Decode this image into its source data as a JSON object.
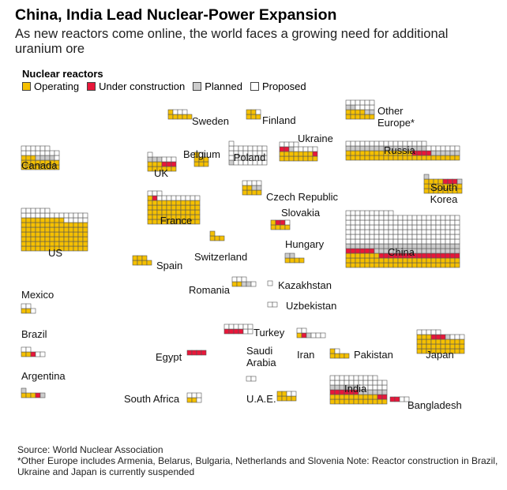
{
  "title": "China, India Lead Nuclear-Power Expansion",
  "subtitle": "As new reactors come online, the world faces a growing need for additional uranium ore",
  "legend": {
    "title": "Nuclear reactors",
    "items": [
      {
        "label": "Operating",
        "color": "#f5c000"
      },
      {
        "label": "Under construction",
        "color": "#e8173a"
      },
      {
        "label": "Planned",
        "color": "#cccccc"
      },
      {
        "label": "Proposed",
        "color": "#ffffff"
      }
    ]
  },
  "colors": {
    "operating": "#f5c000",
    "construction": "#e8173a",
    "planned": "#cccccc",
    "proposed": "#ffffff",
    "grid": "#555555"
  },
  "chart_data": {
    "type": "waffle",
    "unit": "reactors",
    "title": "China, India Lead Nuclear-Power Expansion",
    "series": [
      "Operating",
      "Under construction",
      "Planned",
      "Proposed"
    ],
    "countries": [
      {
        "name": "Sweden",
        "operating": 6,
        "construction": 0,
        "planned": 0,
        "proposed": 3
      },
      {
        "name": "Finland",
        "operating": 5,
        "construction": 0,
        "planned": 0,
        "proposed": 1
      },
      {
        "name": "Other Europe*",
        "operating": 10,
        "construction": 0,
        "planned": 4,
        "proposed": 10
      },
      {
        "name": "Canada",
        "operating": 19,
        "construction": 0,
        "planned": 4,
        "proposed": 15
      },
      {
        "name": "UK",
        "operating": 9,
        "construction": 3,
        "planned": 3,
        "proposed": 4
      },
      {
        "name": "Belgium",
        "operating": 7,
        "construction": 0,
        "planned": 0,
        "proposed": 1
      },
      {
        "name": "Poland",
        "operating": 0,
        "construction": 0,
        "planned": 1,
        "proposed": 32
      },
      {
        "name": "Ukraine",
        "operating": 15,
        "construction": 3,
        "planned": 1,
        "proposed": 9
      },
      {
        "name": "Russia",
        "operating": 38,
        "construction": 4,
        "planned": 23,
        "proposed": 24
      },
      {
        "name": "France",
        "operating": 56,
        "construction": 1,
        "planned": 0,
        "proposed": 12
      },
      {
        "name": "Czech Republic",
        "operating": 6,
        "construction": 0,
        "planned": 2,
        "proposed": 4
      },
      {
        "name": "South Korea",
        "operating": 20,
        "construction": 3,
        "planned": 2,
        "proposed": 0
      },
      {
        "name": "US",
        "operating": 93,
        "construction": 0,
        "planned": 0,
        "proposed": 25
      },
      {
        "name": "Slovakia",
        "operating": 5,
        "construction": 2,
        "planned": 0,
        "proposed": 1
      },
      {
        "name": "Switzerland",
        "operating": 4,
        "construction": 0,
        "planned": 0,
        "proposed": 0
      },
      {
        "name": "Spain",
        "operating": 7,
        "construction": 0,
        "planned": 0,
        "proposed": 0
      },
      {
        "name": "Hungary",
        "operating": 4,
        "construction": 0,
        "planned": 2,
        "proposed": 0
      },
      {
        "name": "China",
        "operating": 55,
        "construction": 23,
        "planned": 42,
        "proposed": 154
      },
      {
        "name": "Mexico",
        "operating": 2,
        "construction": 0,
        "planned": 0,
        "proposed": 3
      },
      {
        "name": "Romania",
        "operating": 2,
        "construction": 0,
        "planned": 2,
        "proposed": 4
      },
      {
        "name": "Kazakhstan",
        "operating": 0,
        "construction": 0,
        "planned": 0,
        "proposed": 1
      },
      {
        "name": "Uzbekistan",
        "operating": 0,
        "construction": 0,
        "planned": 0,
        "proposed": 2
      },
      {
        "name": "Turkey",
        "operating": 0,
        "construction": 4,
        "planned": 0,
        "proposed": 8
      },
      {
        "name": "Saudi Arabia",
        "operating": 0,
        "construction": 0,
        "planned": 0,
        "proposed": 2
      },
      {
        "name": "Iran",
        "operating": 1,
        "construction": 1,
        "planned": 1,
        "proposed": 5
      },
      {
        "name": "Pakistan",
        "operating": 5,
        "construction": 0,
        "planned": 0,
        "proposed": 1
      },
      {
        "name": "Japan",
        "operating": 33,
        "construction": 3,
        "planned": 1,
        "proposed": 8
      },
      {
        "name": "Brazil",
        "operating": 2,
        "construction": 1,
        "planned": 0,
        "proposed": 4
      },
      {
        "name": "Argentina",
        "operating": 3,
        "construction": 1,
        "planned": 2,
        "proposed": 0
      },
      {
        "name": "Egypt",
        "operating": 0,
        "construction": 4,
        "planned": 0,
        "proposed": 0
      },
      {
        "name": "South Africa",
        "operating": 2,
        "construction": 0,
        "planned": 0,
        "proposed": 4
      },
      {
        "name": "U.A.E.",
        "operating": 6,
        "construction": 0,
        "planned": 0,
        "proposed": 2
      },
      {
        "name": "India",
        "operating": 22,
        "construction": 8,
        "planned": 12,
        "proposed": 28
      },
      {
        "name": "Bangladesh",
        "operating": 0,
        "construction": 2,
        "planned": 0,
        "proposed": 2
      }
    ]
  },
  "footer": {
    "source": "Source: World Nuclear Association",
    "note": "*Other Europe includes Armenia, Belarus, Bulgaria, Netherlands and Slovenia Note: Reactor construction in Brazil, Ukraine and Japan is currently suspended"
  }
}
